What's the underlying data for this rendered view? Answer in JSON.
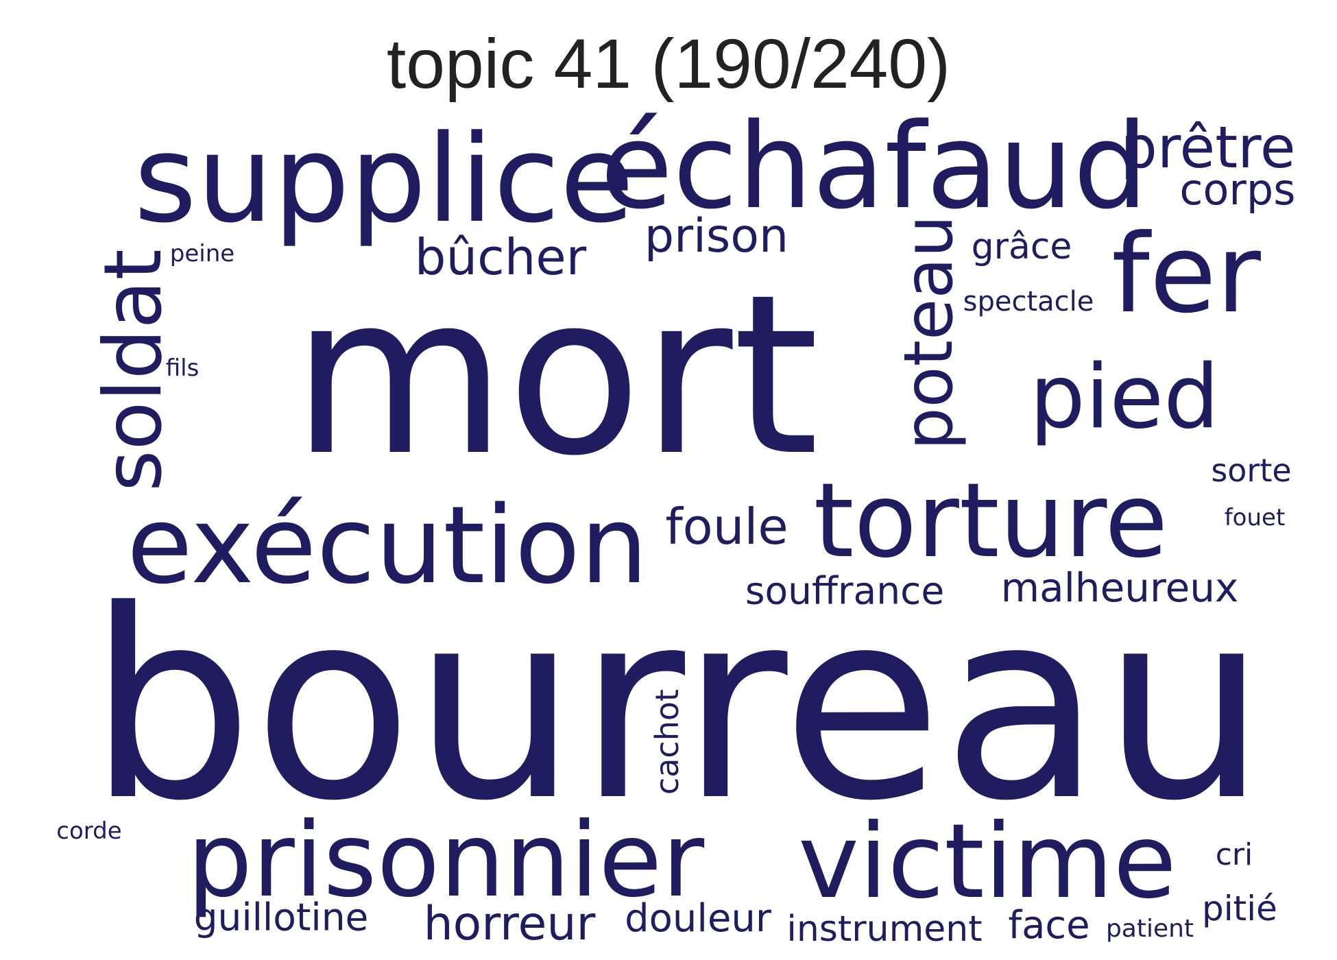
{
  "title": "topic 41 (190/240)",
  "color": "#1f1c60",
  "words": [
    {
      "text": "bourreau",
      "weight": 1.0
    },
    {
      "text": "mort",
      "weight": 0.82
    },
    {
      "text": "supplice",
      "weight": 0.44
    },
    {
      "text": "échafaud",
      "weight": 0.43
    },
    {
      "text": "exécution",
      "weight": 0.41
    },
    {
      "text": "prisonnier",
      "weight": 0.39
    },
    {
      "text": "victime",
      "weight": 0.38
    },
    {
      "text": "torture",
      "weight": 0.37
    },
    {
      "text": "soldat",
      "weight": 0.3
    },
    {
      "text": "pied",
      "weight": 0.29
    },
    {
      "text": "fer",
      "weight": 0.29
    },
    {
      "text": "poteau",
      "weight": 0.26
    },
    {
      "text": "prêtre",
      "weight": 0.2
    },
    {
      "text": "bûcher",
      "weight": 0.18
    },
    {
      "text": "foule",
      "weight": 0.17
    },
    {
      "text": "prison",
      "weight": 0.17
    },
    {
      "text": "horreur",
      "weight": 0.17
    },
    {
      "text": "corps",
      "weight": 0.15
    },
    {
      "text": "malheureux",
      "weight": 0.15
    },
    {
      "text": "souffrance",
      "weight": 0.14
    },
    {
      "text": "douleur",
      "weight": 0.14
    },
    {
      "text": "guillotine",
      "weight": 0.14
    },
    {
      "text": "instrument",
      "weight": 0.14
    },
    {
      "text": "face",
      "weight": 0.14
    },
    {
      "text": "cachot",
      "weight": 0.13
    },
    {
      "text": "pitié",
      "weight": 0.12
    },
    {
      "text": "sorte",
      "weight": 0.12
    },
    {
      "text": "grâce",
      "weight": 0.12
    },
    {
      "text": "spectacle",
      "weight": 0.1
    },
    {
      "text": "cri",
      "weight": 0.1
    },
    {
      "text": "patient",
      "weight": 0.09
    },
    {
      "text": "fouet",
      "weight": 0.08
    },
    {
      "text": "peine",
      "weight": 0.08
    },
    {
      "text": "fils",
      "weight": 0.08
    },
    {
      "text": "corde",
      "weight": 0.08
    }
  ]
}
